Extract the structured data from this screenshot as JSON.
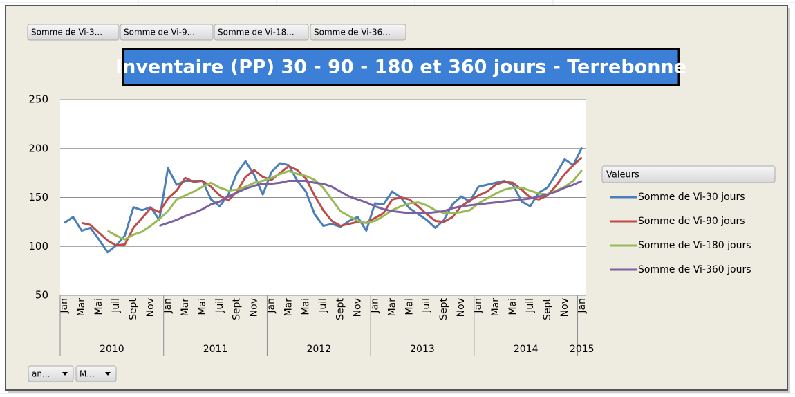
{
  "chart_data": {
    "type": "line",
    "title": "Inventaire (PP) 30 - 90 - 180 et 360 jours - Terrebonne",
    "categories": [
      "Jan",
      null,
      "Mar",
      null,
      "Mai",
      null,
      "Juil",
      null,
      "Sept",
      null,
      "Nov",
      null,
      "Jan",
      null,
      "Mar",
      null,
      "Mai",
      null,
      "Juil",
      null,
      "Sept",
      null,
      "Nov",
      null,
      "Jan",
      null,
      "Mar",
      null,
      "Mai",
      null,
      "Juil",
      null,
      "Sept",
      null,
      "Nov",
      null,
      "Jan",
      null,
      "Mar",
      null,
      "Mai",
      null,
      "Juil",
      null,
      "Sept",
      null,
      "Nov",
      null,
      "Jan",
      null,
      "Mar",
      null,
      "Mai",
      null,
      "Juil",
      null,
      "Sept",
      null,
      "Nov",
      null,
      "Jan"
    ],
    "years": [
      "2010",
      "2011",
      "2012",
      "2013",
      "2014",
      "2015"
    ],
    "ylim": [
      50,
      250
    ],
    "yticks": [
      50,
      100,
      150,
      200,
      250
    ],
    "grid": true,
    "legend_title": "Valeurs",
    "series": [
      {
        "name": "Somme de Vi-30 jours",
        "color": "#4a7ebb",
        "values": [
          124,
          130,
          116,
          119,
          107,
          94,
          101,
          111,
          140,
          137,
          140,
          127,
          180,
          163,
          167,
          167,
          167,
          148,
          141,
          153,
          175,
          187,
          173,
          153,
          176,
          185,
          183,
          167,
          156,
          133,
          121,
          123,
          120,
          126,
          130,
          116,
          144,
          143,
          156,
          150,
          139,
          133,
          127,
          119,
          127,
          143,
          151,
          146,
          161,
          163,
          165,
          167,
          163,
          146,
          141,
          155,
          160,
          174,
          189,
          183,
          201
        ]
      },
      {
        "name": "Somme de Vi-90 jours",
        "color": "#be4b48",
        "values": [
          null,
          null,
          124,
          122,
          114,
          106,
          101,
          102,
          119,
          129,
          139,
          135,
          149,
          157,
          170,
          166,
          167,
          161,
          152,
          147,
          156,
          171,
          178,
          171,
          168,
          175,
          182,
          178,
          169,
          152,
          137,
          126,
          121,
          123,
          125,
          124,
          129,
          134,
          148,
          150,
          148,
          141,
          133,
          126,
          125,
          130,
          141,
          147,
          152,
          156,
          163,
          166,
          165,
          158,
          150,
          148,
          152,
          162,
          174,
          183,
          191
        ]
      },
      {
        "name": "Somme de Vi-180 jours",
        "color": "#98b954",
        "values": [
          null,
          null,
          null,
          null,
          null,
          116,
          111,
          107,
          112,
          115,
          121,
          128,
          136,
          148,
          152,
          156,
          161,
          165,
          160,
          157,
          158,
          161,
          165,
          167,
          170,
          174,
          177,
          174,
          172,
          168,
          160,
          148,
          136,
          131,
          126,
          124,
          126,
          131,
          137,
          141,
          144,
          145,
          142,
          137,
          134,
          134,
          135,
          137,
          144,
          149,
          154,
          158,
          160,
          160,
          157,
          154,
          153,
          157,
          161,
          167,
          178
        ]
      },
      {
        "name": "Somme de Vi-360 jours",
        "color": "#7d60a0",
        "values": [
          null,
          null,
          null,
          null,
          null,
          null,
          null,
          null,
          null,
          null,
          null,
          121,
          124,
          127,
          131,
          134,
          138,
          143,
          146,
          151,
          155,
          159,
          162,
          164,
          164,
          165,
          167,
          167,
          167,
          165,
          164,
          161,
          156,
          151,
          148,
          145,
          141,
          138,
          136,
          135,
          134,
          134,
          134,
          135,
          136,
          139,
          141,
          142,
          143,
          144,
          145,
          146,
          147,
          148,
          149,
          151,
          153,
          156,
          160,
          163,
          167
        ]
      }
    ]
  },
  "ui": {
    "field_buttons": [
      "Somme de Vi-3...",
      "Somme de Vi-9...",
      "Somme de Vi-18...",
      "Somme de Vi-36..."
    ],
    "axis_buttons": [
      "an...",
      "M..."
    ]
  }
}
